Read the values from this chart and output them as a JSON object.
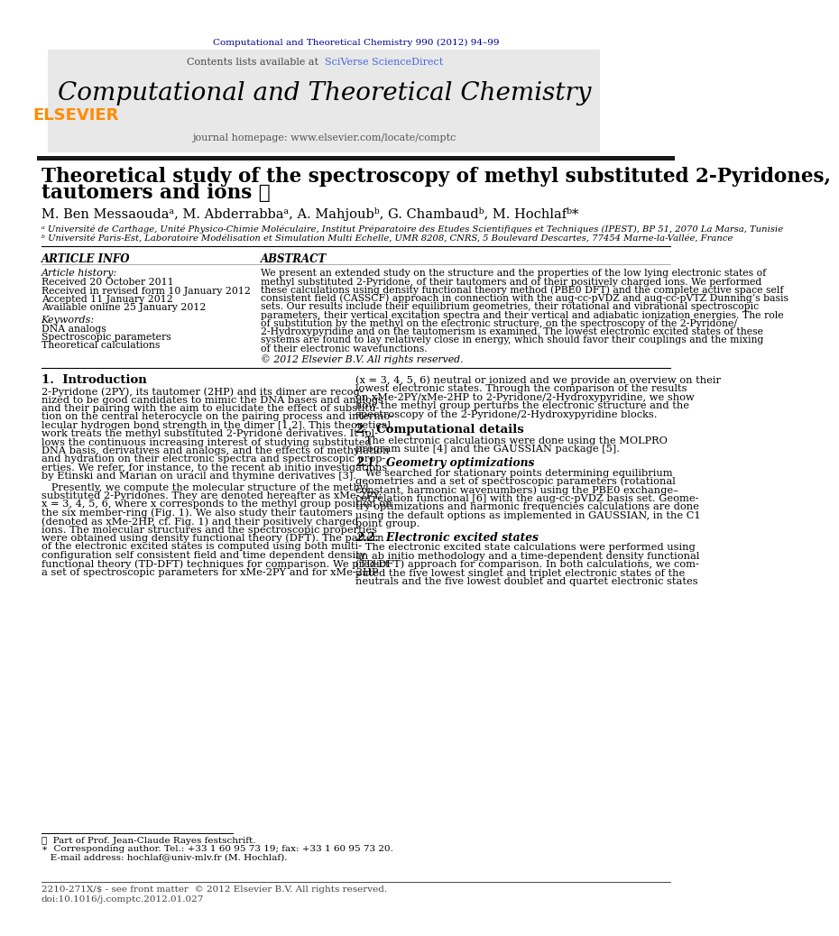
{
  "page_bg": "#ffffff",
  "header_journal_ref": "Computational and Theoretical Chemistry 990 (2012) 94–99",
  "header_journal_ref_color": "#00008B",
  "contents_text": "Contents lists available at ",
  "sciverse_text": "SciVerse ScienceDirect",
  "sciverse_color": "#4169E1",
  "journal_title": "Computational and Theoretical Chemistry",
  "journal_title_color": "#000000",
  "journal_homepage": "journal homepage: www.elsevier.com/locate/comptc",
  "journal_homepage_color": "#555555",
  "header_box_bg": "#E8E8E8",
  "black_bar_color": "#1a1a1a",
  "paper_title_line1": "Theoretical study of the spectroscopy of methyl substituted 2-Pyridones,",
  "paper_title_line2": "tautomers and ions ☆",
  "paper_title_color": "#000000",
  "affil_a": "ᵃ Université de Carthage, Unité Physico-Chimie Moléculaire, Institut Préparatoire des Etudes Scientifiques et Techniques (IPEST), BP 51, 2070 La Marsa, Tunisie",
  "affil_b": "ᵇ Université Paris-Est, Laboratoire Modélisation et Simulation Multi Echelle, UMR 8208, CNRS, 5 Boulevard Descartes, 77454 Marne-la-Vallée, France",
  "affil_color": "#000000",
  "article_info_header": "ARTICLE INFO",
  "abstract_header": "ABSTRACT",
  "article_history_header": "Article history:",
  "received_1": "Received 20 October 2011",
  "received_revised": "Received in revised form 10 January 2012",
  "accepted": "Accepted 11 January 2012",
  "available": "Available online 25 January 2012",
  "keywords_header": "Keywords:",
  "keywords": [
    "DNA analogs",
    "Spectroscopic parameters",
    "Theoretical calculations"
  ],
  "abstract_lines": [
    "We present an extended study on the structure and the properties of the low lying electronic states of",
    "methyl substituted 2-Pyridone, of their tautomers and of their positively charged ions. We performed",
    "these calculations using density functional theory method (PBE0 DFT) and the complete active space self",
    "consistent field (CASSCF) approach in connection with the aug-cc-pVDZ and aug-cc-pVTZ Dunning’s basis",
    "sets. Our results include their equilibrium geometries, their rotational and vibrational spectroscopic",
    "parameters, their vertical excitation spectra and their vertical and adiabatic ionization energies. The role",
    "of substitution by the methyl on the electronic structure, on the spectroscopy of the 2-Pyridone/",
    "2-Hydroxypyridine and on the tautomerism is examined. The lowest electronic excited states of these",
    "systems are found to lay relatively close in energy, which should favor their couplings and the mixing",
    "of their electronic wavefunctions."
  ],
  "copyright_text": "© 2012 Elsevier B.V. All rights reserved.",
  "section1_header": "1.  Introduction",
  "s1_left_lines": [
    "2-Pyridone (2PY), its tautomer (2HP) and its dimer are recog-",
    "nized to be good candidates to mimic the DNA bases and analogs",
    "and their pairing with the aim to elucidate the effect of substitu-",
    "tion on the central heterocycle on the pairing process and intermo-",
    "lecular hydrogen bond strength in the dimer [1,2]. This theoretical",
    "work treats the methyl substituted 2-Pyridone derivatives. It fol-",
    "lows the continuous increasing interest of studying substituted",
    "DNA basis, derivatives and analogs, and the effects of methylation",
    "and hydration on their electronic spectra and spectroscopic prop-",
    "erties. We refer, for instance, to the recent ab initio investigations",
    "by Etinski and Marian on uracil and thymine derivatives [3]."
  ],
  "s1_left_lines2": [
    "   Presently, we compute the molecular structure of the methyl",
    "substituted 2-Pyridones. They are denoted hereafter as xMe-2PY;",
    "x = 3, 4, 5, 6, where x corresponds to the methyl group position on",
    "the six member-ring (Fig. 1). We also study their tautomers",
    "(denoted as xMe-2HP, cf. Fig. 1) and their positively charged",
    "ions. The molecular structures and the spectroscopic properties",
    "were obtained using density functional theory (DFT). The pattern",
    "of the electronic excited states is computed using both multi-",
    "configuration self consistent field and time dependent density",
    "functional theory (TD-DFT) techniques for comparison. We predict",
    "a set of spectroscopic parameters for xMe-2PY and for xMe-2HP"
  ],
  "s1_right_lines": [
    "(x = 3, 4, 5, 6) neutral or ionized and we provide an overview on their",
    "lowest electronic states. Through the comparison of the results",
    "on xMe-2PY/xMe-2HP to 2-Pyridone/2-Hydroxypyridine, we show",
    "how the methyl group perturbs the electronic structure and the",
    "spectroscopy of the 2-Pyridone/2-Hydroxypyridine blocks."
  ],
  "section2_header": "2.  Computational details",
  "s2_lines": [
    "   The electronic calculations were done using the MOLPRO",
    "program suite [4] and the GAUSSIAN package [5]."
  ],
  "section21_header": "2.1.  Geometry optimizations",
  "s21_lines": [
    "   We searched for stationary points determining equilibrium",
    "geometries and a set of spectroscopic parameters (rotational",
    "constant, harmonic wavenumbers) using the PBE0 exchange–",
    "correlation functional [6] with the aug-cc-pVDZ basis set. Geome-",
    "try optimizations and harmonic frequencies calculations are done",
    "using the default options as implemented in GAUSSIAN, in the C1",
    "point group."
  ],
  "section22_header": "2.2.  Electronic excited states",
  "s22_lines": [
    "   The electronic excited state calculations were performed using",
    "an ab initio methodology and a time-dependent density functional",
    "(TD-DFT) approach for comparison. In both calculations, we com-",
    "puted the five lowest singlet and triplet electronic states of the",
    "neutrals and the five lowest doublet and quartet electronic states"
  ],
  "footnote1": "★  Part of Prof. Jean-Claude Rayes festschrift.",
  "footnote2": "∗  Corresponding author. Tel.: +33 1 60 95 73 19; fax: +33 1 60 95 73 20.",
  "footnote3": "   E-mail address: hochlaf@univ-mlv.fr (M. Hochlaf).",
  "footer_text1": "2210-271X/$ - see front matter  © 2012 Elsevier B.V. All rights reserved.",
  "footer_text2": "doi:10.1016/j.comptc.2012.01.027",
  "elsevier_color": "#FF8C00",
  "link_color": "#4169E1"
}
